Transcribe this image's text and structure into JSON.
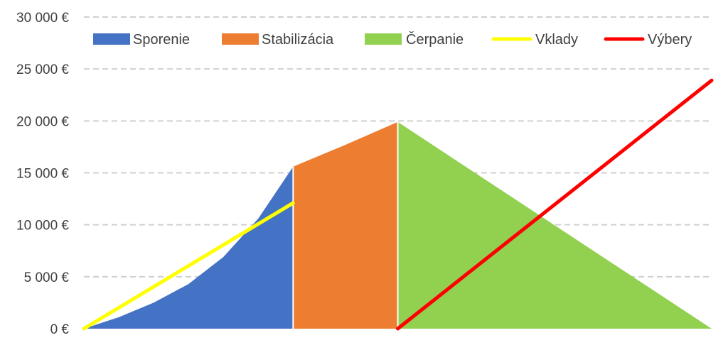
{
  "chart_data": {
    "type": "area",
    "x": [
      0,
      6,
      9,
      18
    ],
    "ylim": [
      0,
      30000
    ],
    "yticks": [
      0,
      5000,
      10000,
      15000,
      20000,
      25000,
      30000
    ],
    "ytick_labels": [
      "0 €",
      "5 000 €",
      "10 000 €",
      "15 000 €",
      "20 000 €",
      "25 000 €",
      "30 000 €"
    ],
    "grid": true,
    "legend_position": "top",
    "series": [
      {
        "name": "Sporenie",
        "kind": "area",
        "color": "#4472C4",
        "points": [
          [
            0,
            0
          ],
          [
            1,
            1100
          ],
          [
            2,
            2500
          ],
          [
            3,
            4300
          ],
          [
            4,
            6900
          ],
          [
            5,
            10600
          ],
          [
            6,
            15600
          ]
        ]
      },
      {
        "name": "Stabilizácia",
        "kind": "area",
        "color": "#ED7D31",
        "points": [
          [
            6,
            15600
          ],
          [
            7.5,
            17700
          ],
          [
            9,
            19900
          ]
        ]
      },
      {
        "name": "Čerpanie",
        "kind": "area",
        "color": "#92D050",
        "points": [
          [
            9,
            19900
          ],
          [
            18,
            0
          ]
        ]
      },
      {
        "name": "Vklady",
        "kind": "line",
        "color": "#FFFF00",
        "points": [
          [
            0,
            0
          ],
          [
            6,
            12100
          ]
        ]
      },
      {
        "name": "Výbery",
        "kind": "line",
        "color": "#FF0000",
        "points": [
          [
            9,
            0
          ],
          [
            18,
            23900
          ]
        ]
      }
    ]
  }
}
